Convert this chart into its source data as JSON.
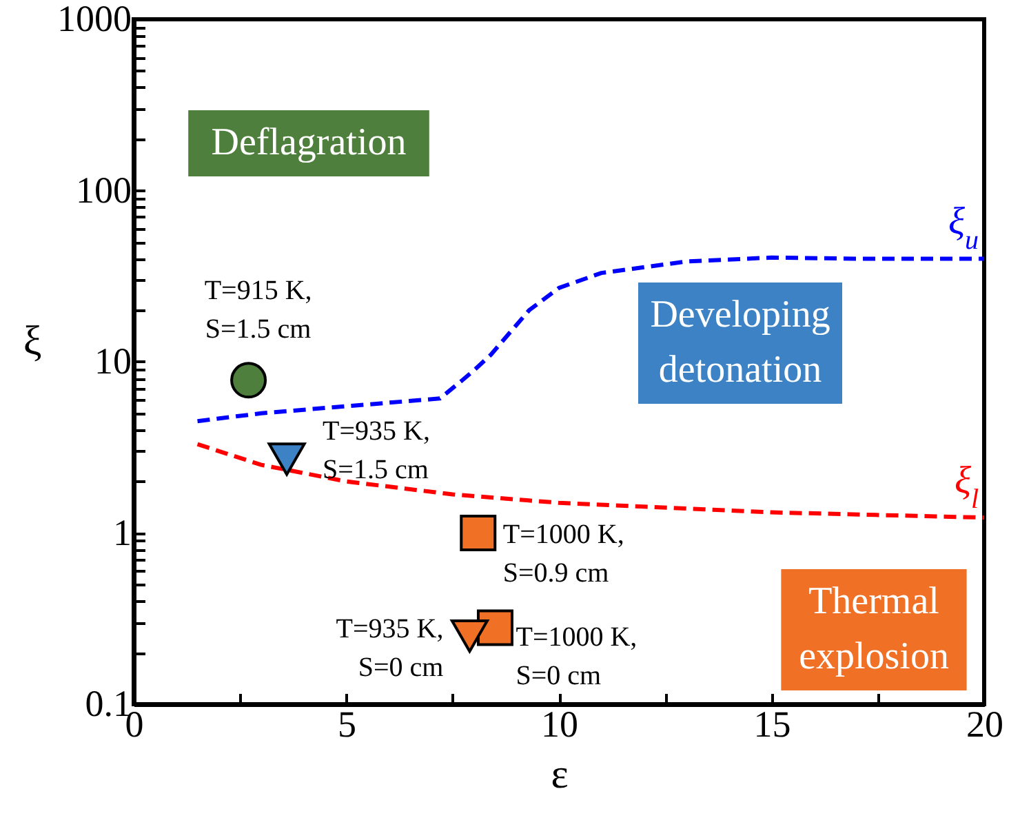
{
  "chart_data": {
    "type": "line",
    "xlabel": "ε",
    "ylabel": "ξ",
    "log": "y",
    "grid": false,
    "xlim": [
      0,
      20
    ],
    "ylim": [
      0.1,
      1000
    ],
    "xticks": [
      0,
      {
        "value": 2.5,
        "label": null
      },
      5,
      {
        "value": 7.5,
        "label": null
      },
      10,
      {
        "value": 12.5,
        "label": null
      },
      15,
      {
        "value": 17.5,
        "label": null
      },
      20
    ],
    "yticks": [
      0.1,
      {
        "value": 0.2,
        "label": null
      },
      {
        "value": 0.3,
        "label": null
      },
      {
        "value": 0.4,
        "label": null
      },
      {
        "value": 0.5,
        "label": null
      },
      {
        "value": 0.6,
        "label": null
      },
      {
        "value": 0.7,
        "label": null
      },
      {
        "value": 0.8,
        "label": null
      },
      {
        "value": 0.9,
        "label": null
      },
      1,
      {
        "value": 2,
        "label": null
      },
      {
        "value": 3,
        "label": null
      },
      {
        "value": 4,
        "label": null
      },
      {
        "value": 5,
        "label": null
      },
      {
        "value": 6,
        "label": null
      },
      {
        "value": 7,
        "label": null
      },
      {
        "value": 8,
        "label": null
      },
      {
        "value": 9,
        "label": null
      },
      10,
      {
        "value": 20,
        "label": null
      },
      {
        "value": 30,
        "label": null
      },
      {
        "value": 40,
        "label": null
      },
      {
        "value": 50,
        "label": null
      },
      {
        "value": 60,
        "label": null
      },
      {
        "value": 70,
        "label": null
      },
      {
        "value": 80,
        "label": null
      },
      {
        "value": 90,
        "label": null
      },
      100,
      {
        "value": 200,
        "label": null
      },
      {
        "value": 300,
        "label": null
      },
      {
        "value": 400,
        "label": null
      },
      {
        "value": 500,
        "label": null
      },
      {
        "value": 600,
        "label": null
      },
      {
        "value": 700,
        "label": null
      },
      {
        "value": 800,
        "label": null
      },
      {
        "value": 900,
        "label": null
      },
      1000
    ],
    "series": [
      {
        "name": "ξ$_{u}$",
        "type": "line",
        "color": "#0000ff",
        "line_style": "dashed",
        "x": [
          1.5,
          3,
          5,
          7.2,
          7.7,
          8,
          8.4,
          9.3,
          10,
          11,
          13,
          15,
          17,
          20
        ],
        "values": [
          4.5,
          5,
          5.5,
          6.1,
          7.7,
          8.9,
          11,
          20,
          27,
          33,
          38.5,
          40.6,
          40,
          40
        ]
      },
      {
        "name": "ξ$_{l}$",
        "type": "line",
        "color": "#ff0000",
        "line_style": "dashed",
        "x": [
          1.5,
          3,
          5,
          7.5,
          10,
          15,
          20
        ],
        "values": [
          3.3,
          2.5,
          2,
          1.68,
          1.5,
          1.32,
          1.23
        ]
      },
      {
        "type": "scatter",
        "marker": "circle",
        "color": "#4e7f3c",
        "x": [
          2.7
        ],
        "values": [
          7.8
        ]
      },
      {
        "type": "scatter",
        "marker": "triangle",
        "color": "#3c82c4",
        "x": [
          3.6
        ],
        "values": [
          2.7
        ]
      },
      {
        "type": "scatter",
        "marker": "square",
        "color": "#f07025",
        "x": [
          8.1,
          8.5
        ],
        "values": [
          1,
          0.28
        ]
      },
      {
        "type": "scatter",
        "marker": "triangle",
        "color": "#f07025",
        "x": [
          7.9
        ],
        "values": [
          0.25
        ]
      }
    ],
    "annotations": [
      {
        "text": "T=915 K,\nS=1.5 cm",
        "x": 2.7,
        "y": 7.8
      },
      {
        "text": "T=935 K,\nS=1.5 cm",
        "x": 3.6,
        "y": 2.7
      },
      {
        "text": "T=1000 K,\nS=0.9 cm",
        "x": 8.1,
        "y": 1
      },
      {
        "text": "T=935 K,\nS=0 cm",
        "x": 7.9,
        "y": 0.25
      },
      {
        "text": "T=1000 K,\nS=0 cm",
        "x": 8.5,
        "y": 0.28
      },
      "Deflagration",
      "Developing\ndetonation",
      "Thermal\nexplosion"
    ]
  }
}
